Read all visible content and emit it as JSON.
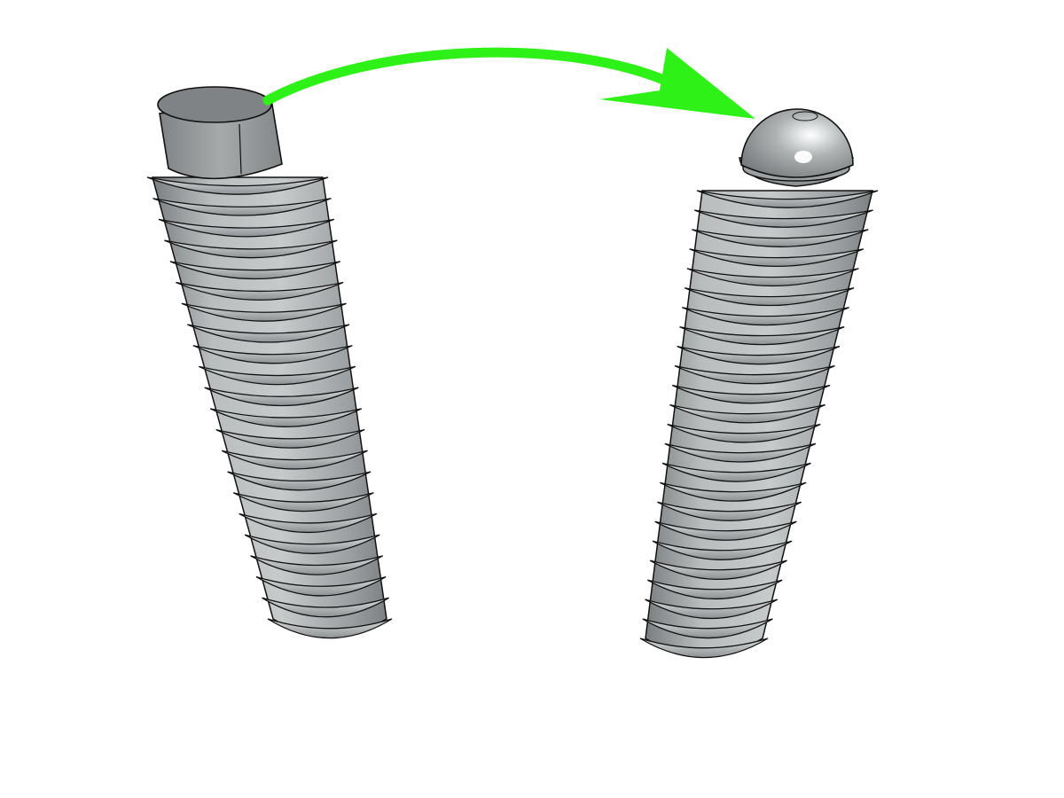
{
  "colors": {
    "background": "#ffffff",
    "arrow": "#2ef217",
    "metal_light": "#c9cccd",
    "metal_mid": "#a2a6a7",
    "metal_dark": "#6d7172",
    "outline": "#111111"
  },
  "scene": {
    "left_part": {
      "icon": "flat-tip-set-screw-icon",
      "thread_count": 22
    },
    "right_part": {
      "icon": "ball-nose-spring-plunger-icon",
      "thread_count": 24
    },
    "arrow": {
      "icon": "curved-arrow-icon",
      "direction": "left-to-right"
    }
  }
}
